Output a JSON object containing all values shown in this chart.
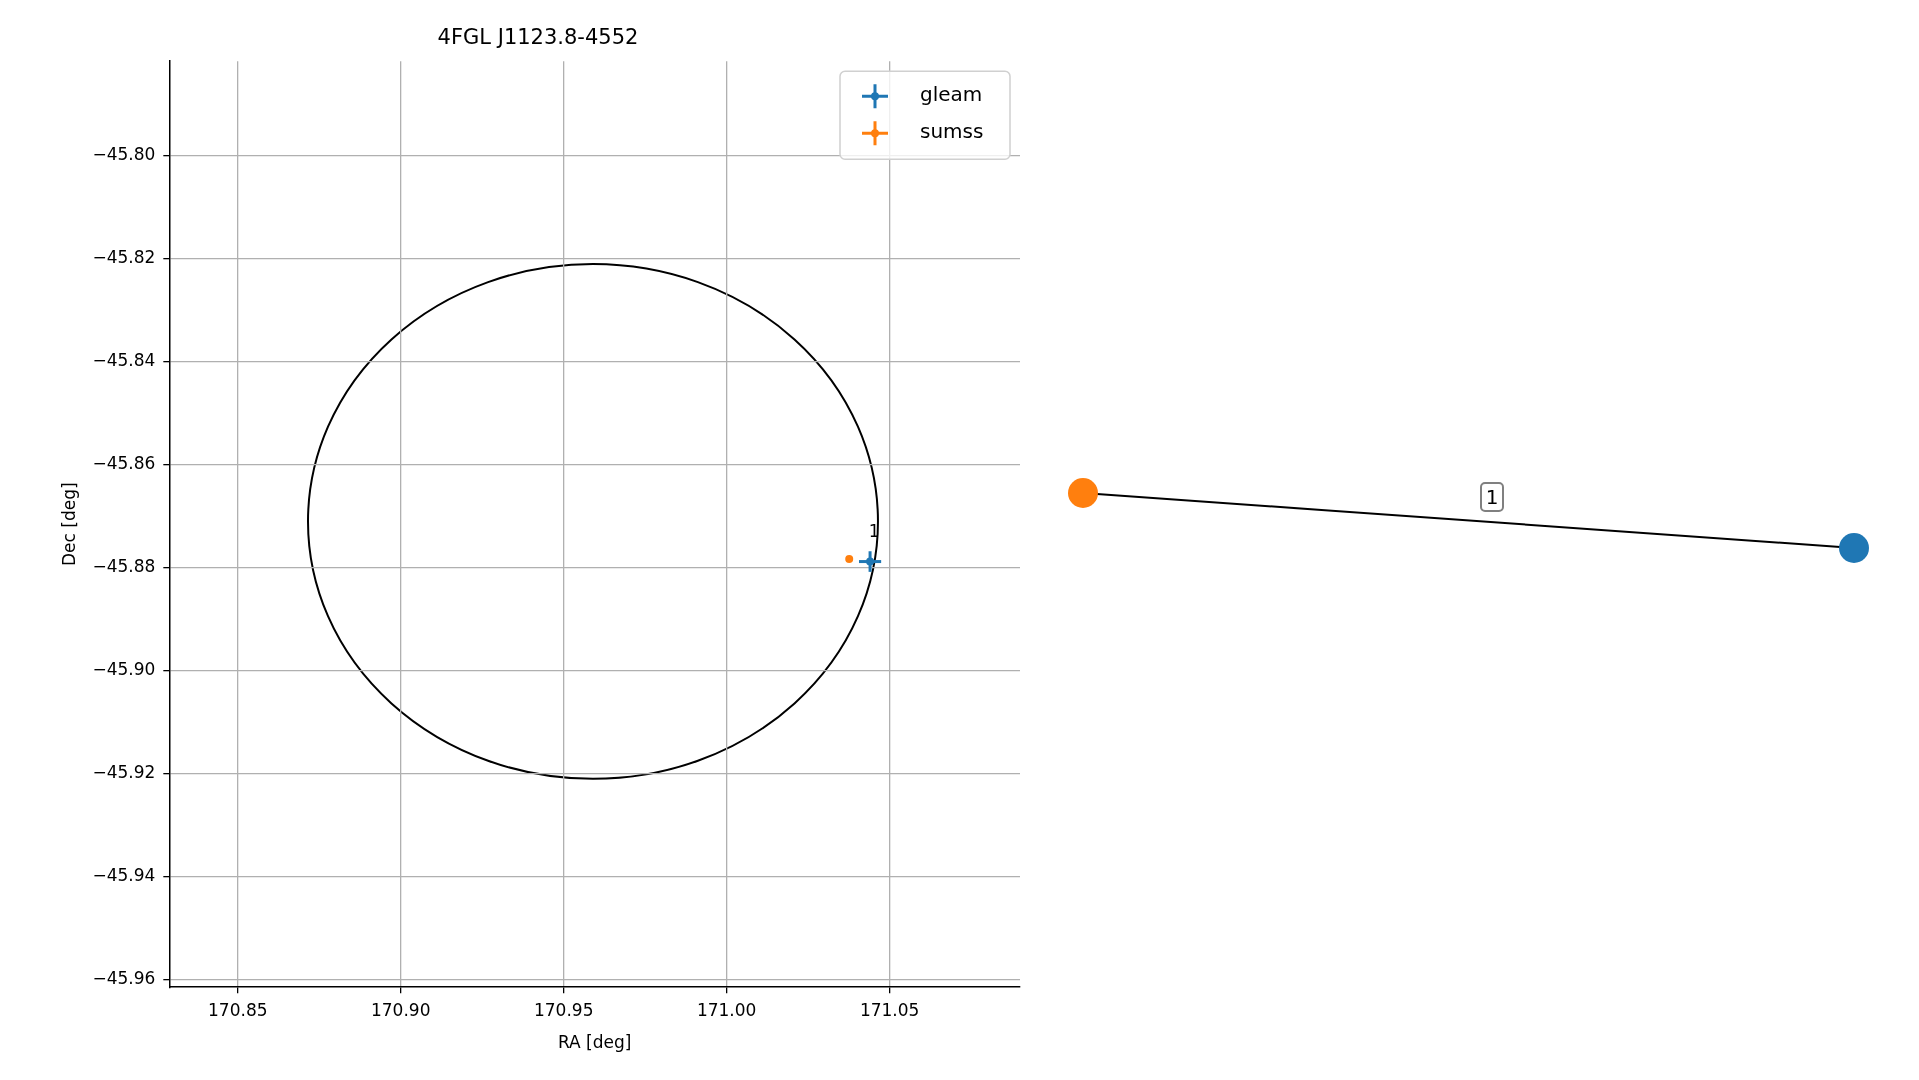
{
  "chart_data": [
    {
      "type": "scatter",
      "title": "4FGL J1123.8-4552",
      "xlabel": "RA [deg]",
      "ylabel": "Dec [deg]",
      "xlim": [
        170.829,
        171.09
      ],
      "ylim": [
        -45.9614,
        -45.7817
      ],
      "xticks": [
        {
          "value": 170.85,
          "label": "170.85"
        },
        {
          "value": 170.9,
          "label": "170.90"
        },
        {
          "value": 170.95,
          "label": "170.95"
        },
        {
          "value": 171.0,
          "label": "171.00"
        },
        {
          "value": 171.05,
          "label": "171.05"
        }
      ],
      "yticks": [
        {
          "value": -45.8,
          "label": "−45.80"
        },
        {
          "value": -45.82,
          "label": "−45.82"
        },
        {
          "value": -45.84,
          "label": "−45.84"
        },
        {
          "value": -45.86,
          "label": "−45.86"
        },
        {
          "value": -45.88,
          "label": "−45.88"
        },
        {
          "value": -45.9,
          "label": "−45.90"
        },
        {
          "value": -45.92,
          "label": "−45.92"
        },
        {
          "value": -45.94,
          "label": "−45.94"
        },
        {
          "value": -45.96,
          "label": "−45.96"
        }
      ],
      "grid": true,
      "legend": "top right",
      "marker": "circle",
      "series": [
        {
          "name": "gleam",
          "color": "#1f77b4",
          "x": [
            171.044
          ],
          "values": [
            -45.8788
          ],
          "errors": [
            0.002
          ],
          "xerrors": [
            0.0034
          ]
        },
        {
          "name": "sumss",
          "color": "#ff7f0e",
          "x": [
            171.0376
          ],
          "values": [
            -45.8783
          ]
        }
      ],
      "annotations": [
        {
          "text": "1",
          "x": 171.044,
          "y": -45.8788
        }
      ]
    },
    {
      "type": "other",
      "annotations": [
        "1"
      ]
    }
  ]
}
